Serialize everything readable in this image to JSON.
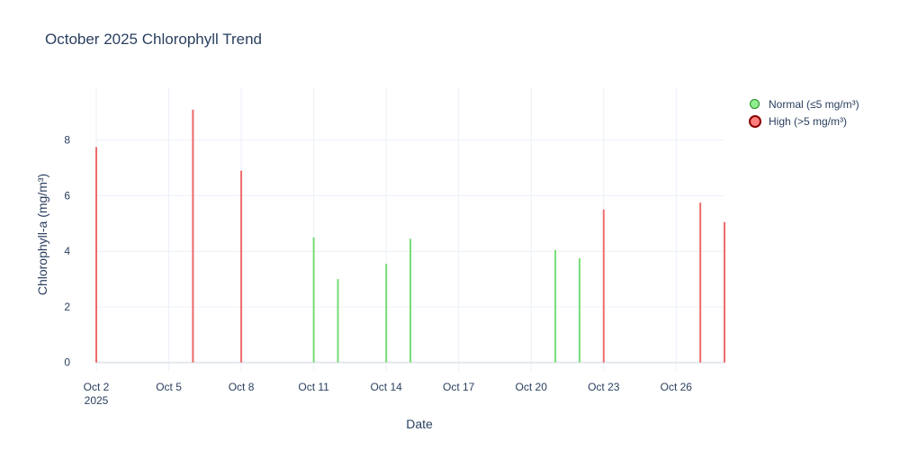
{
  "chart_data": {
    "type": "bar",
    "title": "October 2025 Chlorophyll Trend",
    "xlabel": "Date",
    "ylabel": "Chlorophyll-a (mg/m³)",
    "xlim": [
      "2025-10-02",
      "2025-10-28"
    ],
    "ylim": [
      -0.3,
      9.9
    ],
    "x_ticks": [
      {
        "date": "2025-10-02",
        "label": "Oct 2",
        "sublabel": "2025"
      },
      {
        "date": "2025-10-05",
        "label": "Oct 5"
      },
      {
        "date": "2025-10-08",
        "label": "Oct 8"
      },
      {
        "date": "2025-10-11",
        "label": "Oct 11"
      },
      {
        "date": "2025-10-14",
        "label": "Oct 14"
      },
      {
        "date": "2025-10-17",
        "label": "Oct 17"
      },
      {
        "date": "2025-10-20",
        "label": "Oct 20"
      },
      {
        "date": "2025-10-23",
        "label": "Oct 23"
      },
      {
        "date": "2025-10-26",
        "label": "Oct 26"
      }
    ],
    "y_ticks": [
      0,
      2,
      4,
      6,
      8
    ],
    "grid": true,
    "legend_position": "top-right",
    "series": [
      {
        "name": "Normal (≤5 mg/m³)",
        "color": "#77dd77",
        "marker_fill": "#90ee90",
        "marker_border": "#228b22",
        "points": [
          {
            "x": "2025-10-11",
            "y": 4.5
          },
          {
            "x": "2025-10-12",
            "y": 3.0
          },
          {
            "x": "2025-10-14",
            "y": 3.55
          },
          {
            "x": "2025-10-15",
            "y": 4.45
          },
          {
            "x": "2025-10-21",
            "y": 4.05
          },
          {
            "x": "2025-10-22",
            "y": 3.75
          }
        ]
      },
      {
        "name": "High (>5 mg/m³)",
        "color": "#ee6b6b",
        "marker_fill": "#ff7f7f",
        "marker_border": "#8b0000",
        "points": [
          {
            "x": "2025-10-02",
            "y": 7.75
          },
          {
            "x": "2025-10-06",
            "y": 9.1
          },
          {
            "x": "2025-10-08",
            "y": 6.9
          },
          {
            "x": "2025-10-23",
            "y": 5.5
          },
          {
            "x": "2025-10-27",
            "y": 5.75
          },
          {
            "x": "2025-10-28",
            "y": 5.05
          }
        ]
      }
    ]
  }
}
